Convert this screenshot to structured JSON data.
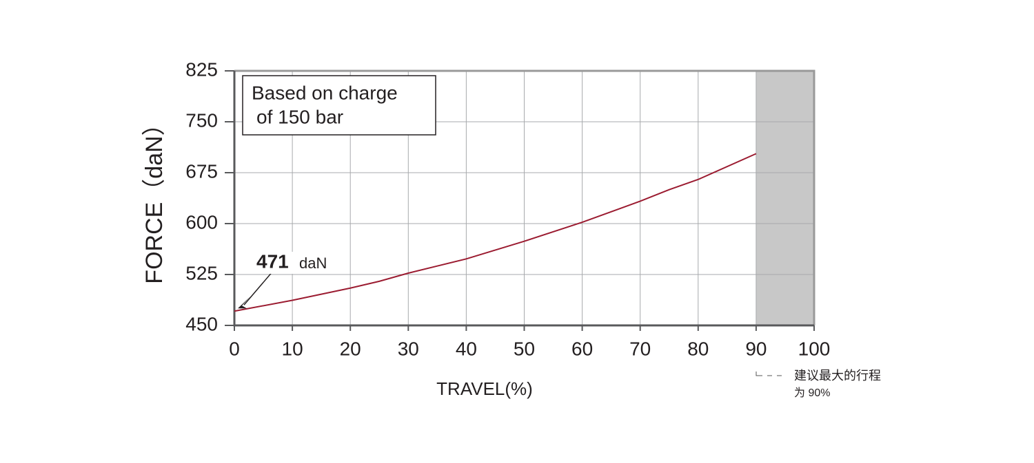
{
  "chart_data": {
    "type": "line",
    "x_label": "TRAVEL(%)",
    "y_label": "FORCE（daN）",
    "x": [
      0,
      10,
      20,
      25,
      30,
      40,
      50,
      60,
      70,
      75,
      80,
      90
    ],
    "series": [
      {
        "color": "#9b1b30",
        "values": [
          471,
          487,
          505,
          515,
          527,
          548,
          574,
          602,
          633,
          650,
          665,
          703
        ]
      }
    ],
    "xlim": [
      0,
      100
    ],
    "xticks": [
      0,
      10,
      20,
      30,
      40,
      50,
      60,
      70,
      80,
      90,
      100
    ],
    "ylim": [
      450,
      825
    ],
    "yticks": [
      450,
      525,
      600,
      675,
      750,
      825
    ],
    "grid": true,
    "shaded_xrange": [
      90,
      100
    ],
    "shade_color": "#c8c8c8",
    "annotation_unit": "daN",
    "note_lines": [
      "Based on charge",
      "of 150 bar"
    ],
    "side_note": [
      "建议最大的行程",
      "为 90%"
    ]
  }
}
